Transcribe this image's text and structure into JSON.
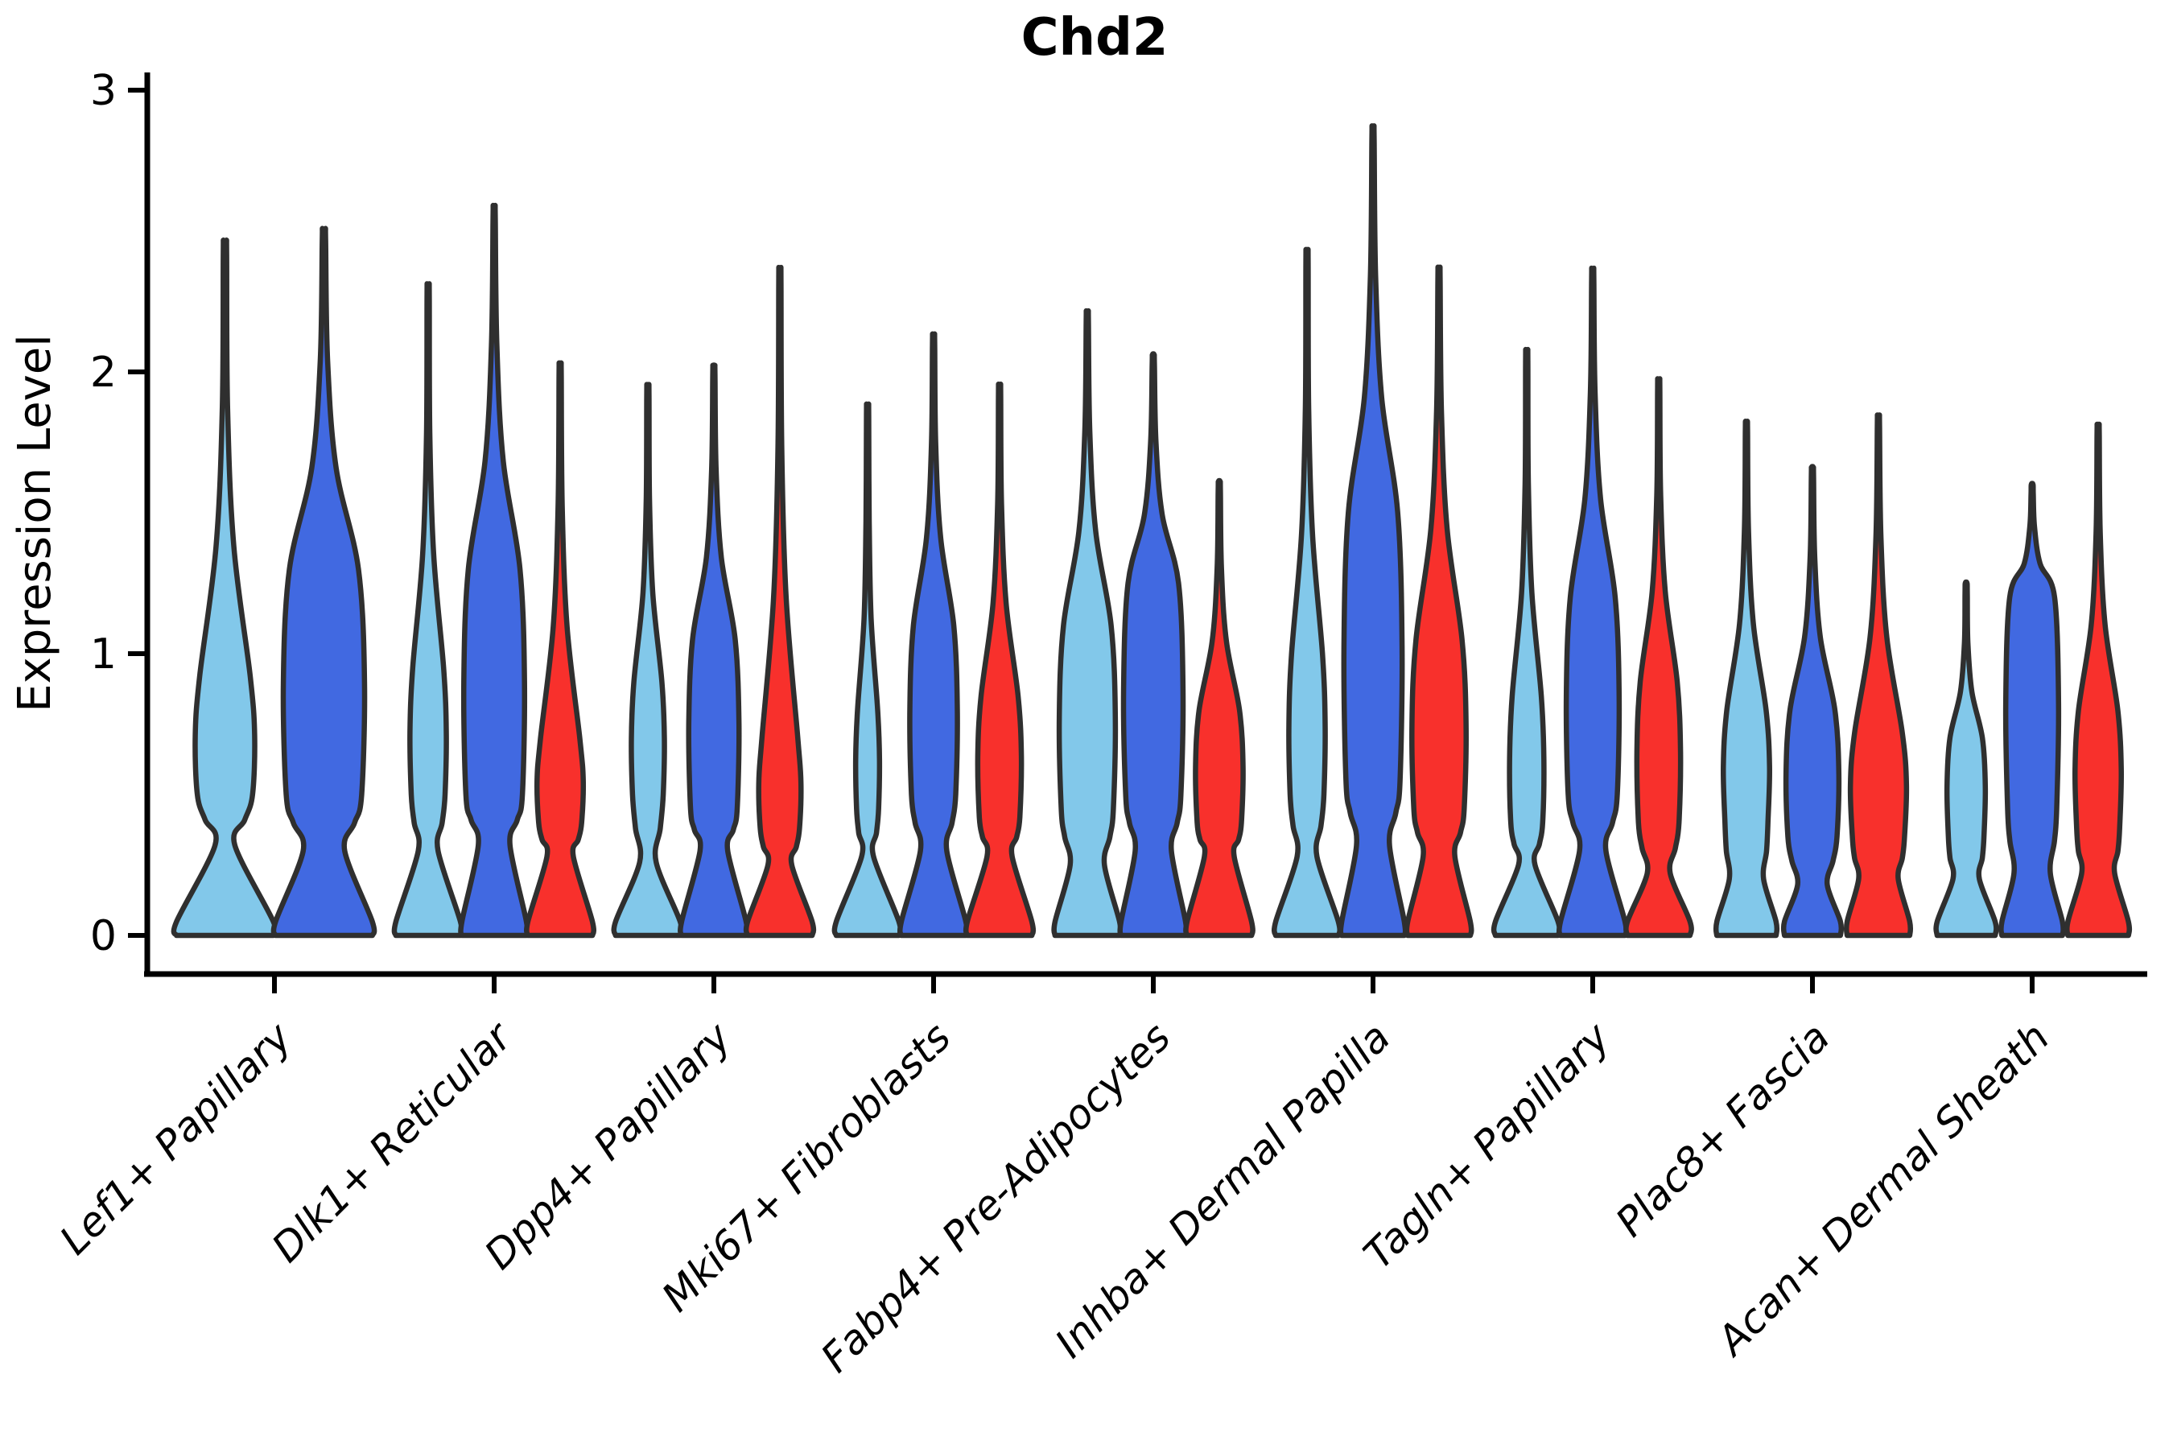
{
  "chart_data": {
    "type": "violin",
    "title": "Chd2",
    "xlabel": "",
    "ylabel": "Expression Level",
    "ylim": [
      0,
      3
    ],
    "yticks": [
      "0",
      "1",
      "2",
      "3"
    ],
    "grid": "off",
    "legend": "none",
    "series_colors": {
      "lightblue": "#82C8EA",
      "blue": "#4169E1",
      "red": "#F8302C",
      "outline": "#2F2F2F"
    },
    "categories": [
      "Lef1+ Papillary",
      "Dlk1+ Reticular",
      "Dpp4+ Papillary",
      "Mki67+ Fibroblasts",
      "Fabp4+ Pre-Adipocytes",
      "Inhba+ Dermal Papilla",
      "Tagln+ Papillary",
      "Plac8+ Fascia",
      "Acan+ Dermal Sheath"
    ],
    "groups": [
      {
        "category": "Lef1+ Papillary",
        "violins": [
          {
            "color": "lightblue",
            "peak": 2.45,
            "foot": 0.98,
            "waist": [
              0.32,
              0.2
            ],
            "bulge": [
              0.5,
              0.92,
              0.6
            ]
          },
          {
            "color": "blue",
            "peak": 2.5,
            "foot": 0.98,
            "waist": [
              0.3,
              0.42
            ],
            "bulge": [
              0.5,
              1.3,
              0.82
            ]
          }
        ]
      },
      {
        "category": "Dlk1+ Reticular",
        "violins": [
          {
            "color": "lightblue",
            "peak": 2.3,
            "foot": 0.98,
            "waist": [
              0.3,
              0.3
            ],
            "bulge": [
              0.5,
              0.95,
              0.55
            ]
          },
          {
            "color": "blue",
            "peak": 2.58,
            "foot": 0.98,
            "waist": [
              0.32,
              0.48
            ],
            "bulge": [
              0.5,
              1.3,
              0.92
            ]
          },
          {
            "color": "red",
            "peak": 2.02,
            "foot": 0.98,
            "waist": [
              0.28,
              0.4
            ],
            "bulge": [
              0.4,
              0.7,
              0.7
            ]
          }
        ]
      },
      {
        "category": "Dpp4+ Papillary",
        "violins": [
          {
            "color": "lightblue",
            "peak": 1.95,
            "foot": 0.98,
            "waist": [
              0.26,
              0.25
            ],
            "bulge": [
              0.5,
              0.9,
              0.5
            ]
          },
          {
            "color": "blue",
            "peak": 2.02,
            "foot": 0.98,
            "waist": [
              0.3,
              0.42
            ],
            "bulge": [
              0.45,
              1.05,
              0.76
            ]
          },
          {
            "color": "red",
            "peak": 2.35,
            "foot": 0.98,
            "waist": [
              0.25,
              0.36
            ],
            "bulge": [
              0.38,
              0.7,
              0.64
            ]
          }
        ]
      },
      {
        "category": "Mki67+ Fibroblasts",
        "violins": [
          {
            "color": "lightblue",
            "peak": 1.88,
            "foot": 0.95,
            "waist": [
              0.28,
              0.18
            ],
            "bulge": [
              0.45,
              0.8,
              0.36
            ]
          },
          {
            "color": "blue",
            "peak": 2.13,
            "foot": 0.98,
            "waist": [
              0.3,
              0.4
            ],
            "bulge": [
              0.5,
              1.1,
              0.72
            ]
          },
          {
            "color": "red",
            "peak": 1.95,
            "foot": 0.98,
            "waist": [
              0.28,
              0.38
            ],
            "bulge": [
              0.42,
              0.85,
              0.66
            ]
          }
        ]
      },
      {
        "category": "Fabp4+ Pre-Adipocytes",
        "violins": [
          {
            "color": "lightblue",
            "peak": 2.21,
            "foot": 0.98,
            "waist": [
              0.25,
              0.52
            ],
            "bulge": [
              0.45,
              1.1,
              0.85
            ]
          },
          {
            "color": "blue",
            "peak": 2.06,
            "foot": 0.98,
            "waist": [
              0.3,
              0.55
            ],
            "bulge": [
              0.5,
              1.25,
              0.9
            ]
          },
          {
            "color": "red",
            "peak": 1.61,
            "foot": 0.98,
            "waist": [
              0.28,
              0.45
            ],
            "bulge": [
              0.4,
              0.8,
              0.72
            ]
          }
        ]
      },
      {
        "category": "Inhba+ Dermal Papilla",
        "violins": [
          {
            "color": "lightblue",
            "peak": 2.42,
            "foot": 0.95,
            "waist": [
              0.28,
              0.3
            ],
            "bulge": [
              0.5,
              1.0,
              0.55
            ]
          },
          {
            "color": "blue",
            "peak": 2.86,
            "foot": 0.95,
            "waist": [
              0.32,
              0.5
            ],
            "bulge": [
              0.55,
              1.5,
              0.88
            ]
          },
          {
            "color": "red",
            "peak": 2.36,
            "foot": 0.95,
            "waist": [
              0.28,
              0.48
            ],
            "bulge": [
              0.45,
              1.05,
              0.82
            ]
          }
        ]
      },
      {
        "category": "Tagln+ Papillary",
        "violins": [
          {
            "color": "lightblue",
            "peak": 2.07,
            "foot": 0.95,
            "waist": [
              0.25,
              0.25
            ],
            "bulge": [
              0.4,
              0.85,
              0.52
            ]
          },
          {
            "color": "blue",
            "peak": 2.36,
            "foot": 0.98,
            "waist": [
              0.3,
              0.4
            ],
            "bulge": [
              0.5,
              1.2,
              0.8
            ]
          },
          {
            "color": "red",
            "peak": 1.97,
            "foot": 0.95,
            "waist": [
              0.22,
              0.35
            ],
            "bulge": [
              0.4,
              0.9,
              0.66
            ]
          }
        ]
      },
      {
        "category": "Plac8+ Fascia",
        "violins": [
          {
            "color": "lightblue",
            "peak": 1.82,
            "foot": 0.9,
            "waist": [
              0.2,
              0.52
            ],
            "bulge": [
              0.4,
              0.8,
              0.7
            ]
          },
          {
            "color": "blue",
            "peak": 1.66,
            "foot": 0.85,
            "waist": [
              0.18,
              0.45
            ],
            "bulge": [
              0.35,
              0.8,
              0.8
            ]
          },
          {
            "color": "red",
            "peak": 1.84,
            "foot": 0.95,
            "waist": [
              0.2,
              0.6
            ],
            "bulge": [
              0.35,
              0.72,
              0.85
            ]
          }
        ]
      },
      {
        "category": "Acan+ Dermal Sheath",
        "violins": [
          {
            "color": "lightblue",
            "peak": 1.25,
            "foot": 0.88,
            "waist": [
              0.2,
              0.4
            ],
            "bulge": [
              0.35,
              0.7,
              0.58
            ]
          },
          {
            "color": "blue",
            "peak": 1.6,
            "foot": 0.92,
            "waist": [
              0.22,
              0.55
            ],
            "bulge": [
              0.45,
              1.2,
              0.8
            ]
          },
          {
            "color": "red",
            "peak": 1.81,
            "foot": 0.92,
            "waist": [
              0.22,
              0.5
            ],
            "bulge": [
              0.38,
              0.8,
              0.7
            ]
          }
        ]
      }
    ]
  }
}
